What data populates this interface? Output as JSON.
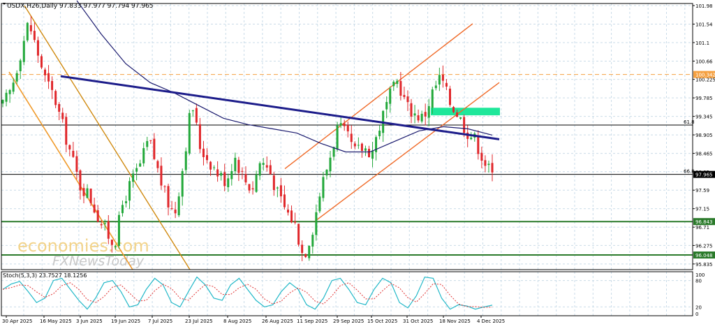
{
  "header": {
    "symbol_line": "USDX,H26,Daily  97.833 97.977 97.794 97.965"
  },
  "watermark": {
    "line1": "economies.com",
    "line2": "FXNewsToday"
  },
  "stoch_label": "Stoch(5,3,3) 23.7527 18.1256",
  "fib_labels": {
    "upper": "61.8",
    "lower": "66.8"
  },
  "price_tags": {
    "current": "97.965",
    "resistance": "100.342",
    "support1": "96.843",
    "support2": "96.048"
  },
  "colors": {
    "bull": "#22a83a",
    "bear": "#e0262a",
    "ma": "#1a1a6e",
    "trend_main": "#1c1c8a",
    "channel": "#f06a28",
    "down_channel_upper": "#d08a10",
    "down_channel_lower": "#f09a2a",
    "resistance_dash": "#f5a040",
    "support": "#2a7a2a",
    "zone": "#1fe79a",
    "stoch_main": "#22b8c8",
    "stoch_signal": "#e03030"
  },
  "chart_data": [
    {
      "type": "candlestick",
      "title": "USDX,H26,Daily",
      "ohlc_latest": {
        "open": 97.833,
        "high": 97.977,
        "low": 97.794,
        "close": 97.965
      },
      "y_ticks": [
        101.98,
        101.54,
        101.1,
        100.66,
        100.225,
        99.785,
        99.345,
        98.905,
        98.465,
        98.03,
        97.59,
        97.15,
        96.71,
        96.275,
        95.835
      ],
      "ylim": [
        95.7,
        102.03
      ],
      "x_ticks": [
        "30 Apr 2025",
        "16 May 2025",
        "3 Jun 2025",
        "19 Jun 2025",
        "7 Jul 2025",
        "23 Jul 2025",
        "8 Aug 2025",
        "26 Aug 2025",
        "11 Sep 2025",
        "29 Sep 2025",
        "15 Oct 2025",
        "31 Oct 2025",
        "18 Nov 2025",
        "4 Dec 2025"
      ],
      "levels": {
        "resistance": 100.342,
        "fib_61_8": 99.14,
        "fib_66_8": 97.965,
        "support_1": 96.843,
        "support_2": 96.048
      },
      "supply_zone": {
        "top": 99.55,
        "bottom": 99.37
      },
      "close_path": [
        99.6,
        100.0,
        100.8,
        101.6,
        100.9,
        100.2,
        99.8,
        99.1,
        98.4,
        97.7,
        97.5,
        97.0,
        96.6,
        96.3,
        97.3,
        97.8,
        98.2,
        98.8,
        98.1,
        97.4,
        97.0,
        98.2,
        99.7,
        98.6,
        98.3,
        98.0,
        97.8,
        98.4,
        97.9,
        97.6,
        98.3,
        98.1,
        97.5,
        97.1,
        96.8,
        96.0,
        96.6,
        97.6,
        98.3,
        99.1,
        98.9,
        98.5,
        98.6,
        98.5,
        99.2,
        99.8,
        100.2,
        99.6,
        99.4,
        99.3,
        99.9,
        100.3,
        99.7,
        99.4,
        99.0,
        98.8,
        98.3,
        97.95
      ],
      "moving_average": [
        102.1,
        101.3,
        100.6,
        100.15,
        99.9,
        99.6,
        99.3,
        99.15,
        99.05,
        98.95,
        98.7,
        98.5,
        98.5,
        98.75,
        99.0,
        99.1,
        99.05,
        98.9
      ],
      "trendlines": [
        {
          "name": "main-descending",
          "from": [
            "~14 May 2025",
            100.3
          ],
          "to": [
            "~16 Dec 2025",
            98.8
          ]
        },
        {
          "name": "rising-channel-upper",
          "from": [
            "~26 Sep 2025",
            98.1
          ],
          "to": [
            "~16 Dec 2025",
            101.55
          ]
        },
        {
          "name": "rising-channel-lower",
          "from": [
            "~30 Sep 2025",
            96.85
          ],
          "to": [
            "~16 Dec 2025",
            100.15
          ]
        }
      ]
    },
    {
      "type": "line",
      "title": "Stoch(5,3,3) 23.7527 18.1256",
      "y_ticks": [
        100,
        80,
        20,
        0
      ],
      "ylim": [
        0,
        100
      ],
      "latest": {
        "main": 23.7527,
        "signal": 18.1256
      },
      "main_path": [
        60,
        72,
        78,
        55,
        30,
        40,
        80,
        85,
        60,
        35,
        15,
        40,
        75,
        80,
        55,
        20,
        25,
        60,
        85,
        70,
        30,
        20,
        55,
        88,
        70,
        40,
        35,
        70,
        85,
        60,
        35,
        20,
        25,
        55,
        75,
        60,
        25,
        15,
        40,
        80,
        85,
        60,
        30,
        25,
        60,
        85,
        75,
        30,
        18,
        45,
        88,
        85,
        40,
        15,
        25,
        22,
        15,
        20,
        24
      ]
    }
  ]
}
